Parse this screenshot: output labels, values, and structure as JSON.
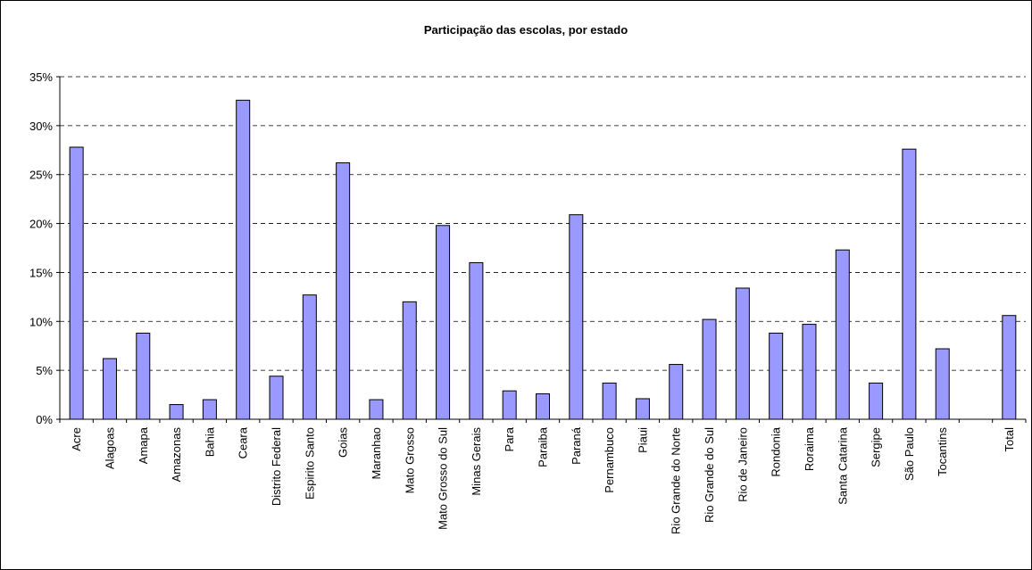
{
  "chart_data": {
    "type": "bar",
    "title": "Participação das escolas, por estado",
    "xlabel": "",
    "ylabel": "",
    "ylim": [
      0,
      35
    ],
    "yticks": [
      "0%",
      "5%",
      "10%",
      "15%",
      "20%",
      "25%",
      "30%",
      "35%"
    ],
    "grid": true,
    "legend": "none",
    "bar_color": "#9999ff",
    "categories": [
      "Acre",
      "Alagoas",
      "Amapa",
      "Amazonas",
      "Bahia",
      "Ceara",
      "Distrito Federal",
      "Espirito Santo",
      "Goias",
      "Maranhao",
      "Mato Grosso",
      "Mato Grosso do Sul",
      "Minas Gerais",
      "Para",
      "Paraiba",
      "Paraná",
      "Pernambuco",
      "Piaui",
      "Rio Grande do Norte",
      "Rio Grande do Sul",
      "Rio de Janeiro",
      "Rondonia",
      "Roraima",
      "Santa Catarina",
      "Sergipe",
      "São Paulo",
      "Tocantins",
      "",
      "Total"
    ],
    "values": [
      27.8,
      6.2,
      8.8,
      1.5,
      2.0,
      32.6,
      4.4,
      12.7,
      26.2,
      2.0,
      12.0,
      19.8,
      16.0,
      2.9,
      2.6,
      20.9,
      3.7,
      2.1,
      5.6,
      10.2,
      13.4,
      8.8,
      9.7,
      17.3,
      3.7,
      27.6,
      7.2,
      null,
      10.6
    ]
  }
}
